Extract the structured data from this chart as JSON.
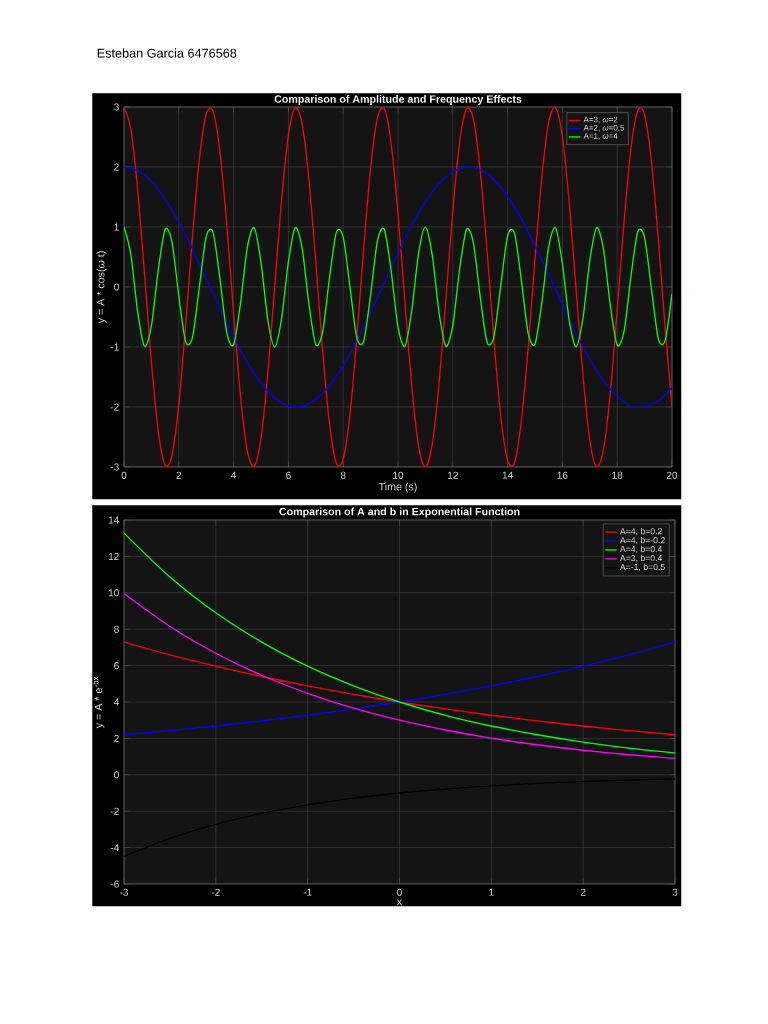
{
  "chart_data": [
    {
      "type": "line",
      "title": "Comparison of Amplitude and Frequency Effects",
      "xlabel": "Time (s)",
      "ylabel": "y = A * cos(*ω* t)",
      "annotations": [
        "Esteban Garcia 6476568"
      ],
      "x": [
        0,
        0.25,
        0.5,
        0.75,
        1,
        1.25,
        1.5,
        1.75,
        2,
        2.25,
        2.5,
        2.75,
        3,
        3.25,
        3.5,
        3.75,
        4,
        4.25,
        4.5,
        4.75,
        5,
        5.25,
        5.5,
        5.75,
        6,
        6.25,
        6.5,
        6.75,
        7,
        7.25,
        7.5,
        7.75,
        8,
        8.25,
        8.5,
        8.75,
        9,
        9.25,
        9.5,
        9.75,
        10,
        10.25,
        10.5,
        10.75,
        11,
        11.25,
        11.5,
        11.75,
        12,
        12.25,
        12.5,
        12.75,
        13,
        13.25,
        13.5,
        13.75,
        14,
        14.25,
        14.5,
        14.75,
        15,
        15.25,
        15.5,
        15.75,
        16,
        16.25,
        16.5,
        16.75,
        17,
        17.25,
        17.5,
        17.75,
        18,
        18.25,
        18.5,
        18.75,
        19,
        19.25,
        19.5,
        19.75,
        20
      ],
      "series": [
        {
          "name": "A=3, *ω*=2",
          "color": "#ff0000",
          "values": [
            3,
            2.63,
            1.62,
            0.21,
            -1.25,
            -2.4,
            -2.97,
            -2.81,
            -1.96,
            -0.63,
            0.85,
            2.13,
            2.88,
            2.93,
            2.26,
            1.04,
            -0.44,
            -1.81,
            -2.73,
            -2.99,
            -2.52,
            -1.43,
            0.01,
            1.45,
            2.53,
            2.99,
            2.72,
            1.79,
            0.41,
            -1.07,
            -2.28,
            -2.94,
            -2.87,
            -2.11,
            -0.83,
            0.66,
            1.98,
            2.82,
            2.97,
            2.39,
            1.22,
            -0.24,
            -1.64,
            -2.65,
            -3.0,
            -2.62,
            -1.6,
            -0.19,
            1.27,
            2.42,
            2.97,
            2.8,
            1.94,
            0.61,
            -0.88,
            -2.15,
            -2.89,
            -2.93,
            -2.24,
            -1.02,
            0.46,
            1.83,
            2.75,
            2.99,
            2.5,
            1.4,
            -0.04,
            -1.47,
            -2.55,
            -3.0,
            -2.71,
            -1.76,
            -0.38,
            1.09,
            2.3,
            2.94,
            2.87,
            2.09,
            0.8,
            -0.68,
            -2.0
          ]
        },
        {
          "name": "A=2, *ω*=0.5",
          "color": "#0000ff",
          "x": [
            0,
            0.5,
            1,
            1.5,
            2,
            2.5,
            3,
            3.5,
            4,
            4.5,
            5,
            5.5,
            6,
            6.5,
            7,
            7.5,
            8,
            8.5,
            9,
            9.5,
            10,
            10.5,
            11,
            11.5,
            12,
            12.5,
            13,
            13.5,
            14,
            14.5,
            15,
            15.5,
            16,
            16.5,
            17,
            17.5,
            18,
            18.5,
            19,
            19.5,
            20
          ],
          "values": [
            2,
            1.94,
            1.76,
            1.46,
            1.08,
            0.63,
            0.14,
            -0.36,
            -0.83,
            -1.26,
            -1.6,
            -1.85,
            -1.98,
            -1.99,
            -1.87,
            -1.64,
            -1.31,
            -0.89,
            -0.42,
            0.07,
            0.57,
            1.03,
            1.42,
            1.72,
            1.92,
            2.0,
            1.95,
            1.79,
            1.51,
            1.14,
            0.69,
            0.2,
            -0.29,
            -0.77,
            -1.2,
            -1.56,
            -1.82,
            -1.98,
            -2.0,
            -1.9,
            -1.68
          ]
        },
        {
          "name": "A=1, *ω*=4",
          "color": "#00ff00",
          "values": [
            1,
            0.54,
            -0.42,
            -0.99,
            -0.65,
            0.28,
            0.96,
            0.75,
            -0.15,
            -0.91,
            -0.84,
            0.0,
            0.84,
            0.91,
            0.14,
            -0.76,
            -0.96,
            -0.28,
            0.66,
            0.99,
            0.41,
            -0.55,
            -1.0,
            -0.53,
            0.42,
            0.99,
            0.65,
            -0.29,
            -0.96,
            -0.75,
            0.15,
            0.91,
            0.83,
            -0.01,
            -0.85,
            -0.9,
            -0.13,
            0.77,
            0.96,
            0.27,
            -0.67,
            -0.99,
            -0.4,
            0.56,
            1.0,
            0.53,
            -0.43,
            -0.99,
            -0.64,
            0.3,
            0.96,
            0.74,
            -0.16,
            -0.92,
            -0.83,
            0.02,
            0.85,
            0.9,
            0.12,
            -0.77,
            -0.95,
            -0.26,
            0.67,
            0.99,
            0.39,
            -0.56,
            -1.0,
            -0.52,
            0.44,
            0.99,
            0.63,
            -0.31,
            -0.97,
            -0.74,
            0.17,
            0.92,
            0.82,
            -0.03,
            -0.86,
            -0.89,
            -0.11
          ]
        }
      ],
      "xlim": [
        0,
        20
      ],
      "ylim": [
        -3,
        3
      ],
      "xticks": [
        0,
        2,
        4,
        6,
        8,
        10,
        12,
        14,
        16,
        18,
        20
      ],
      "yticks": [
        -3,
        -2,
        -1,
        0,
        1,
        2,
        3
      ],
      "grid": true,
      "legend": "top right"
    },
    {
      "type": "line",
      "title": "Comparison of A and b in Exponential Function",
      "xlabel": "x",
      "ylabel": "y = A * e$^{-bx}$",
      "x": [
        -3,
        -2.5,
        -2,
        -1.5,
        -1,
        -0.5,
        0,
        0.5,
        1,
        1.5,
        2,
        2.5,
        3
      ],
      "series": [
        {
          "name": "A=4, b=0.2",
          "color": "#ff0000",
          "values": [
            7.29,
            6.59,
            5.97,
            5.4,
            4.89,
            4.42,
            4,
            3.62,
            3.27,
            2.96,
            2.68,
            2.43,
            2.2
          ]
        },
        {
          "name": "A=4, b=-0.2",
          "color": "#0000ff",
          "values": [
            2.2,
            2.43,
            2.68,
            2.96,
            3.27,
            3.62,
            4,
            4.42,
            4.89,
            5.4,
            5.97,
            6.59,
            7.29
          ]
        },
        {
          "name": "A=4, b=0.4",
          "color": "#00ff00",
          "values": [
            13.28,
            10.87,
            8.9,
            7.29,
            5.97,
            4.89,
            4,
            3.27,
            2.68,
            2.2,
            1.8,
            1.47,
            1.2
          ]
        },
        {
          "name": "A=3, b=0.4",
          "color": "#ff00ff",
          "values": [
            9.96,
            8.15,
            6.68,
            5.47,
            4.48,
            3.66,
            3,
            2.46,
            2.01,
            1.65,
            1.35,
            1.1,
            0.9
          ]
        },
        {
          "name": "A=-1, b=0.5",
          "color": "#000000",
          "values": [
            -4.48,
            -3.49,
            -2.72,
            -2.12,
            -1.65,
            -1.28,
            -1,
            -0.78,
            -0.61,
            -0.47,
            -0.37,
            -0.29,
            -0.22
          ]
        }
      ],
      "xlim": [
        -3,
        3
      ],
      "ylim": [
        -6,
        14
      ],
      "xticks": [
        -3,
        -2,
        -1,
        0,
        1,
        2,
        3
      ],
      "yticks": [
        -6,
        -4,
        -2,
        0,
        2,
        4,
        6,
        8,
        10,
        12,
        14
      ],
      "grid": true,
      "legend": "top right"
    }
  ]
}
